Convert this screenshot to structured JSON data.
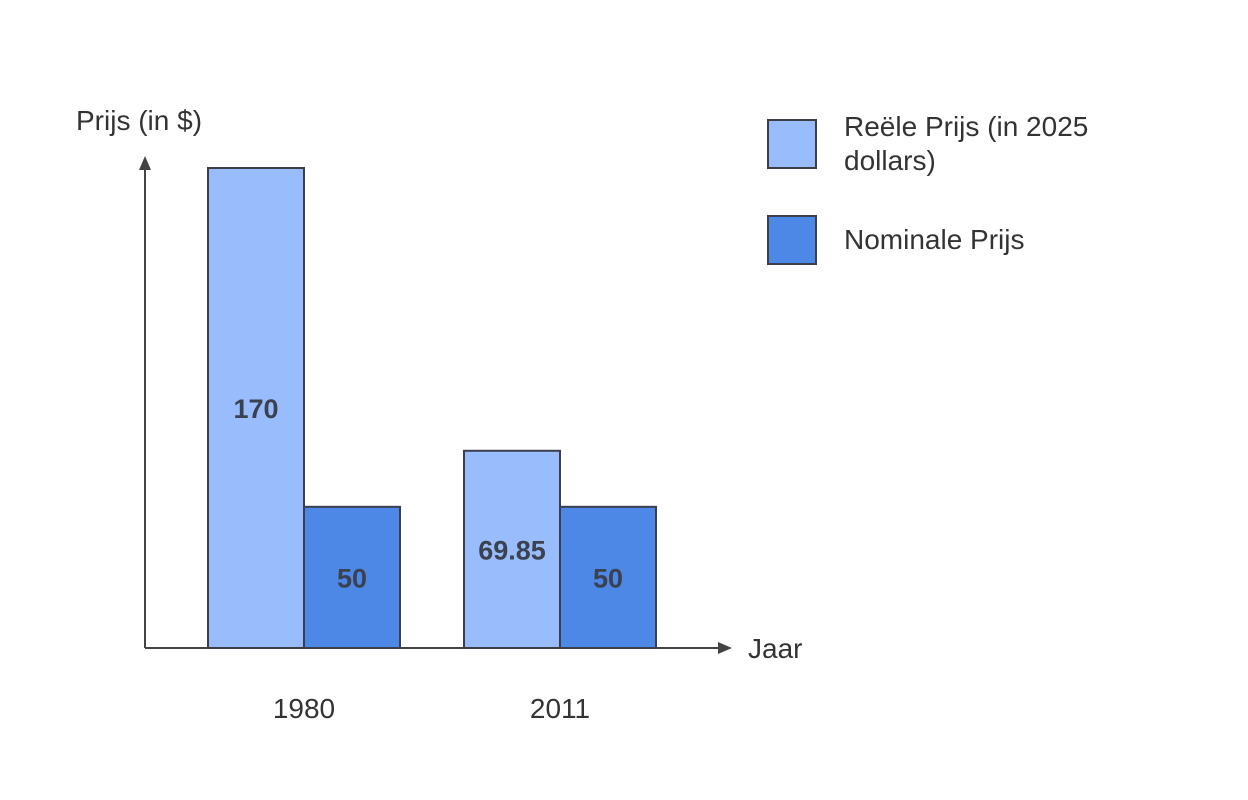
{
  "chart_data": {
    "type": "bar",
    "title": "",
    "ylabel": "Prijs (in $)",
    "xlabel": "Jaar",
    "categories": [
      "1980",
      "2011"
    ],
    "series": [
      {
        "name": "Reële Prijs (in 2025 dollars)",
        "values": [
          170,
          69.85
        ],
        "value_labels": [
          "170",
          "69.85"
        ],
        "color": "#99bdfc"
      },
      {
        "name": "Nominale Prijs",
        "values": [
          50,
          50
        ],
        "value_labels": [
          "50",
          "50"
        ],
        "color": "#4d88e6"
      }
    ],
    "ylim": [
      0,
      170
    ],
    "grid": false,
    "legend_position": "top-right"
  }
}
